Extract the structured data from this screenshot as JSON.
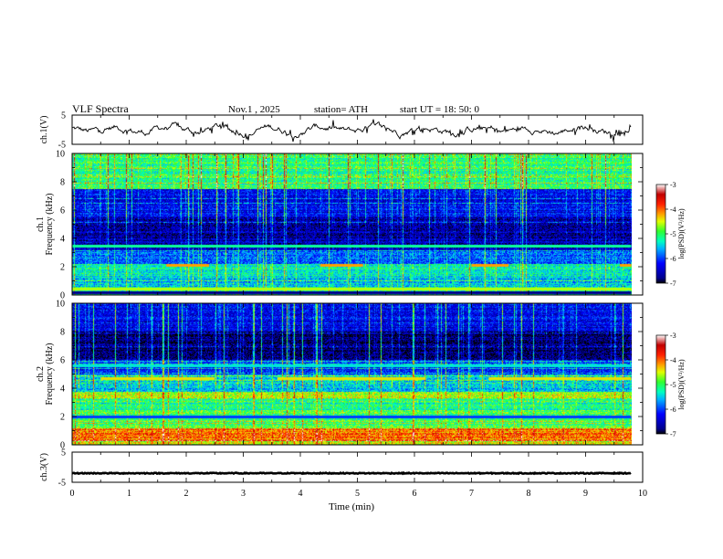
{
  "header": {
    "title": "VLF  Spectra",
    "date": "Nov.1  , 2025",
    "station": "station= ATH",
    "start_ut": "start  UT  =    18: 50: 0"
  },
  "chart_data": {
    "type": "heatmap",
    "title": "VLF  Spectra",
    "xlabel": "Time  (min)",
    "x_range": [
      0,
      10
    ],
    "x_ticks": [
      "0",
      "1",
      "2",
      "3",
      "4",
      "5",
      "6",
      "7",
      "8",
      "9",
      "10"
    ],
    "data_end_min": 9.8,
    "panels": [
      {
        "id": "ch1-waveform",
        "kind": "line",
        "ylabel": "ch.1(V)",
        "ylim": [
          -5,
          5
        ],
        "y_ticks": [
          "5",
          "-5"
        ],
        "mean_level_v": 0,
        "amplitude_v": 3
      },
      {
        "id": "ch1-spectrogram",
        "kind": "spectrogram",
        "ylabel_lines": [
          "ch.1",
          "Frequency  (kHz)"
        ],
        "ylim": [
          0,
          10
        ],
        "y_ticks": [
          "0",
          "2",
          "4",
          "6",
          "8",
          "10"
        ],
        "bands_khz": [
          {
            "from": 0,
            "to": 0.6,
            "level": -5.2
          },
          {
            "from": 0.6,
            "to": 1.4,
            "level": -5.6
          },
          {
            "from": 1.4,
            "to": 2.2,
            "level": -5.3
          },
          {
            "from": 2.2,
            "to": 3.2,
            "level": -5.9
          },
          {
            "from": 3.2,
            "to": 5.5,
            "level": -6.6
          },
          {
            "from": 5.5,
            "to": 7.5,
            "level": -6.3
          },
          {
            "from": 7.5,
            "to": 10,
            "level": -5.1
          }
        ],
        "lines_khz": [
          {
            "f": 2.1,
            "level": -4.2,
            "segments_min": [
              [
                1.65,
                2.4
              ],
              [
                4.35,
                5.1
              ],
              [
                7.0,
                7.65
              ],
              [
                9.6,
                9.8
              ]
            ]
          },
          {
            "f": 3.5,
            "level": -5.2,
            "segments_min": [
              [
                0,
                9.8
              ]
            ]
          },
          {
            "f": 0.2,
            "level": -6.8,
            "segments_min": [
              [
                0,
                9.8
              ]
            ]
          },
          {
            "f": 0.45,
            "level": -4.6,
            "segments_min": [
              [
                0,
                9.8
              ]
            ]
          }
        ]
      },
      {
        "id": "ch2-spectrogram",
        "kind": "spectrogram",
        "ylabel_lines": [
          "ch.2",
          "Frequency  (kHz)"
        ],
        "ylim": [
          0,
          10
        ],
        "y_ticks": [
          "0",
          "2",
          "4",
          "6",
          "8",
          "10"
        ],
        "bands_khz": [
          {
            "from": 0,
            "to": 0.3,
            "level": -4.6
          },
          {
            "from": 0.3,
            "to": 1.2,
            "level": -4.1
          },
          {
            "from": 1.2,
            "to": 2.5,
            "level": -5.0
          },
          {
            "from": 2.5,
            "to": 3.3,
            "level": -5.2
          },
          {
            "from": 3.3,
            "to": 3.8,
            "level": -4.6
          },
          {
            "from": 3.8,
            "to": 5.0,
            "level": -5.5
          },
          {
            "from": 5.0,
            "to": 6.0,
            "level": -6.1
          },
          {
            "from": 6.0,
            "to": 8.0,
            "level": -6.8
          },
          {
            "from": 8.0,
            "to": 10,
            "level": -6.3
          }
        ],
        "lines_khz": [
          {
            "f": 4.7,
            "level": -4.4,
            "segments_min": [
              [
                0.5,
                2.5
              ],
              [
                3.6,
                6.2
              ],
              [
                7.3,
                9.8
              ]
            ]
          },
          {
            "f": 2.0,
            "level": -6.0,
            "segments_min": [
              [
                0,
                9.8
              ]
            ]
          },
          {
            "f": 5.6,
            "level": -5.4,
            "segments_min": [
              [
                0,
                9.8
              ]
            ]
          }
        ]
      },
      {
        "id": "ch3-waveform",
        "kind": "line",
        "ylabel": "ch.3(V)",
        "ylim": [
          -5,
          5
        ],
        "y_ticks": [
          "5",
          "-5"
        ],
        "mean_level_v": -2,
        "amplitude_v": 0.3
      }
    ],
    "colorbar": {
      "label": "log(PSD)(V²/Hz)",
      "range": [
        -7,
        -3
      ],
      "ticks": [
        "-3",
        "-4",
        "-5",
        "-6",
        "-7"
      ],
      "stops": [
        {
          "v": -7.0,
          "color": "#000000"
        },
        {
          "v": -6.8,
          "color": "#00008b"
        },
        {
          "v": -6.2,
          "color": "#0000ff"
        },
        {
          "v": -5.6,
          "color": "#00b4ff"
        },
        {
          "v": -5.3,
          "color": "#00ffc0"
        },
        {
          "v": -4.9,
          "color": "#30ff30"
        },
        {
          "v": -4.5,
          "color": "#e0ff00"
        },
        {
          "v": -4.2,
          "color": "#ffa000"
        },
        {
          "v": -3.8,
          "color": "#ff2000"
        },
        {
          "v": -3.4,
          "color": "#c00000"
        },
        {
          "v": -3.0,
          "color": "#ffffff"
        }
      ]
    }
  }
}
